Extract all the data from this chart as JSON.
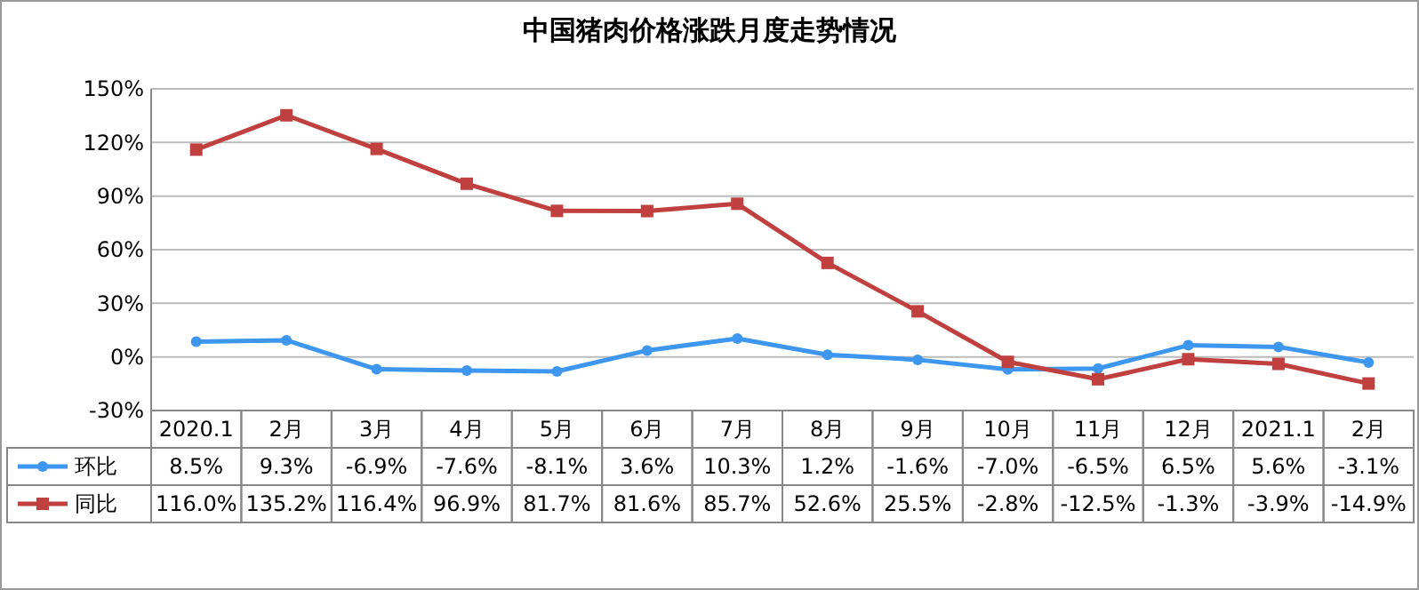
{
  "chart_data": {
    "type": "line",
    "title": "中国猪肉价格涨跌月度走势情况",
    "categories": [
      "2020.1",
      "2月",
      "3月",
      "4月",
      "5月",
      "6月",
      "7月",
      "8月",
      "9月",
      "10月",
      "11月",
      "12月",
      "2021.1",
      "2月"
    ],
    "series": [
      {
        "name": "环比",
        "color": "#3d97f0",
        "marker": "circle",
        "values": [
          8.5,
          9.3,
          -6.9,
          -7.6,
          -8.1,
          3.6,
          10.3,
          1.2,
          -1.6,
          -7.0,
          -6.5,
          6.5,
          5.6,
          -3.1
        ],
        "value_labels": [
          "8.5%",
          "9.3%",
          "-6.9%",
          "-7.6%",
          "-8.1%",
          "3.6%",
          "10.3%",
          "1.2%",
          "-1.6%",
          "-7.0%",
          "-6.5%",
          "6.5%",
          "5.6%",
          "-3.1%"
        ]
      },
      {
        "name": "同比",
        "color": "#c0403f",
        "marker": "square",
        "values": [
          116.0,
          135.2,
          116.4,
          96.9,
          81.7,
          81.6,
          85.7,
          52.6,
          25.5,
          -2.8,
          -12.5,
          -1.3,
          -3.9,
          -14.9
        ],
        "value_labels": [
          "116.0%",
          "135.2%",
          "116.4%",
          "96.9%",
          "81.7%",
          "81.6%",
          "85.7%",
          "52.6%",
          "25.5%",
          "-2.8%",
          "-12.5%",
          "-1.3%",
          "-3.9%",
          "-14.9%"
        ]
      }
    ],
    "ylim": [
      -30,
      150
    ],
    "yticks": [
      {
        "value": -30,
        "label": "-30%"
      },
      {
        "value": 0,
        "label": "0%"
      },
      {
        "value": 30,
        "label": "30%"
      },
      {
        "value": 60,
        "label": "60%"
      },
      {
        "value": 90,
        "label": "90%"
      },
      {
        "value": 120,
        "label": "120%"
      },
      {
        "value": 150,
        "label": "150%"
      }
    ],
    "grid": "y",
    "legend": "bottom"
  }
}
